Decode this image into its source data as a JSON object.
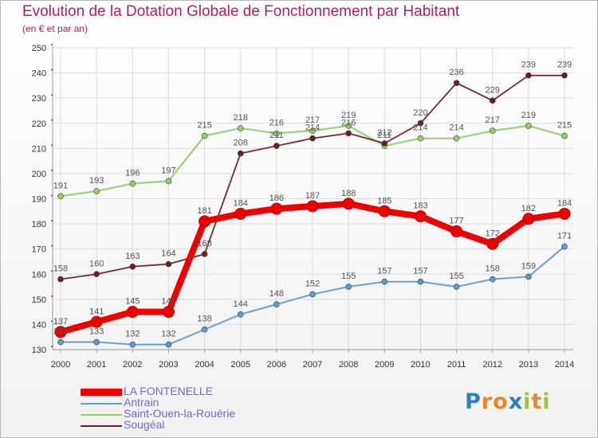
{
  "chart_data": {
    "type": "line",
    "title": "Evolution de la Dotation Globale de Fonctionnement par Habitant",
    "subtitle": "(en € et par an)",
    "xlabel": "",
    "ylabel": "",
    "categories": [
      "2000",
      "2001",
      "2002",
      "2003",
      "2004",
      "2005",
      "2006",
      "2007",
      "2008",
      "2009",
      "2010",
      "2011",
      "2012",
      "2013",
      "2014"
    ],
    "ylim": [
      130,
      250
    ],
    "yticks": [
      130,
      140,
      150,
      160,
      170,
      180,
      190,
      200,
      210,
      220,
      230,
      240,
      250
    ],
    "grid": true,
    "legend_position": "bottom-left",
    "series": [
      {
        "name": "Antrain",
        "color": "#5b9bd5",
        "values": [
          133,
          133,
          132,
          132,
          138,
          144,
          148,
          152,
          155,
          157,
          157,
          155,
          158,
          159,
          171
        ]
      },
      {
        "name": "Saint-Ouen-la-Rouérie",
        "color": "#8fd460",
        "values": [
          191,
          193,
          196,
          197,
          215,
          218,
          216,
          217,
          219,
          211,
          214,
          214,
          217,
          219,
          215
        ]
      },
      {
        "name": "Sougéal",
        "color": "#6b1d22",
        "values": [
          158,
          160,
          163,
          164,
          168,
          208,
          211,
          214,
          216,
          212,
          220,
          236,
          229,
          239,
          239
        ]
      },
      {
        "name": "LA FONTENELLE",
        "color": "#ee0000",
        "values": [
          137,
          141,
          145,
          145,
          181,
          184,
          186,
          187,
          188,
          185,
          183,
          177,
          172,
          182,
          184
        ]
      }
    ],
    "legend_order": [
      "LA FONTENELLE",
      "Antrain",
      "Saint-Ouen-la-Rouérie",
      "Sougéal"
    ]
  },
  "brand": {
    "letters": [
      "P",
      "r",
      "o",
      "x",
      "i",
      "t",
      "i"
    ],
    "colors": [
      "#2e7fc1",
      "#e8862a",
      "#e8862a",
      "#2e7fc1",
      "#9bc53d",
      "#e8862a",
      "#9bc53d"
    ]
  }
}
